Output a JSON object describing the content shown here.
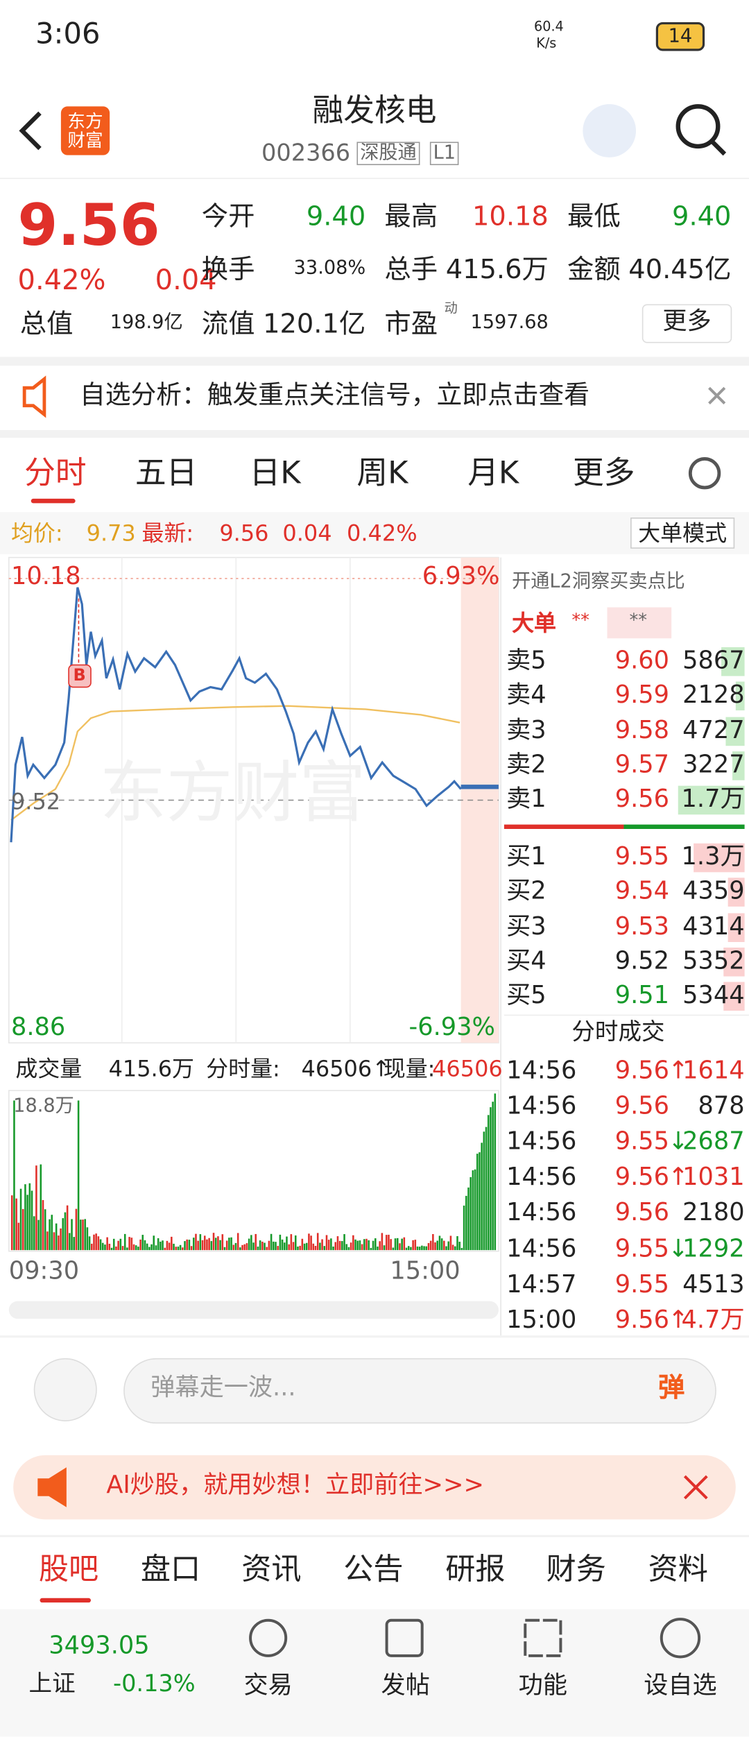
{
  "status": {
    "time": "3:06",
    "net_speed": "60.4",
    "net_unit": "K/s",
    "battery": "14"
  },
  "header": {
    "logo": "东方财富",
    "title": "融发核电",
    "code": "002366",
    "tags": [
      "深股通",
      "L1"
    ]
  },
  "quote": {
    "price": "9.56",
    "change_pct": "0.42%",
    "change": "0.04",
    "fields": [
      {
        "label": "今开",
        "value": "9.40"
      },
      {
        "label": "最高",
        "value": "10.18"
      },
      {
        "label": "最低",
        "value": "9.40"
      },
      {
        "label": "换手",
        "value": "33.08%"
      },
      {
        "label": "总手",
        "value": "415.6万"
      },
      {
        "label": "金额",
        "value": "40.45亿"
      },
      {
        "label": "总值",
        "value": "198.9亿"
      },
      {
        "label": "流值",
        "value": "120.1亿"
      },
      {
        "label": "市盈",
        "sup": "动",
        "value": "1597.68"
      }
    ],
    "more": "更多"
  },
  "notice": "自选分析：触发重点关注信号，立即点击查看",
  "tabs": [
    "分时",
    "五日",
    "日K",
    "周K",
    "月K",
    "更多"
  ],
  "info_bar": {
    "avg_label": "均价:",
    "avg": "9.73",
    "latest_label": "最新:",
    "latest": "9.56",
    "change": "0.04",
    "change_pct": "0.42%",
    "mode": "大单模式"
  },
  "chart": {
    "high": "10.18",
    "high_pct": "6.93%",
    "low": "8.86",
    "low_pct": "-6.93%",
    "prev_close": "9.52",
    "marker": "B",
    "watermark": "东方财富"
  },
  "volume": {
    "label": "成交量",
    "total": "415.6万",
    "minute_label": "分时量:",
    "minute": "46506↑",
    "current_label": "现量:",
    "current": "46506",
    "max": "18.8万",
    "x_start": "09:30",
    "x_end": "15:00"
  },
  "order_book": {
    "banner": "开通L2洞察买卖点比",
    "big": "大单",
    "stars": [
      "**",
      "**"
    ],
    "sells": [
      [
        "卖5",
        "9.60",
        "5867"
      ],
      [
        "卖4",
        "9.59",
        "2128"
      ],
      [
        "卖3",
        "9.58",
        "4727"
      ],
      [
        "卖2",
        "9.57",
        "3227"
      ],
      [
        "卖1",
        "9.56",
        "1.7万"
      ]
    ],
    "buys": [
      [
        "买1",
        "9.55",
        "1.3万"
      ],
      [
        "买2",
        "9.54",
        "4359"
      ],
      [
        "买3",
        "9.53",
        "4314"
      ],
      [
        "买4",
        "9.52",
        "5352"
      ],
      [
        "买5",
        "9.51",
        "5344"
      ]
    ]
  },
  "trades": {
    "title": "分时成交",
    "rows": [
      [
        "14:56",
        "9.56",
        "↑",
        "1614"
      ],
      [
        "14:56",
        "9.56",
        "",
        "878"
      ],
      [
        "14:56",
        "9.55",
        "↓",
        "2687"
      ],
      [
        "14:56",
        "9.56",
        "↑",
        "1031"
      ],
      [
        "14:56",
        "9.56",
        "",
        "2180"
      ],
      [
        "14:56",
        "9.55",
        "↓",
        "1292"
      ],
      [
        "14:57",
        "9.55",
        "",
        "4513"
      ],
      [
        "15:00",
        "9.56",
        "↑",
        "4.7万"
      ]
    ]
  },
  "comment": {
    "placeholder": "弹幕走一波...",
    "button": "弹"
  },
  "ad": "AI炒股，就用妙想！立即前往>>>",
  "bottom_tabs": [
    "股吧",
    "盘口",
    "资讯",
    "公告",
    "研报",
    "财务",
    "资料"
  ],
  "nav": {
    "index_value": "3493.05",
    "index_name": "上证",
    "index_pct": "-0.13%",
    "items": [
      "交易",
      "发帖",
      "功能",
      "设自选"
    ]
  }
}
